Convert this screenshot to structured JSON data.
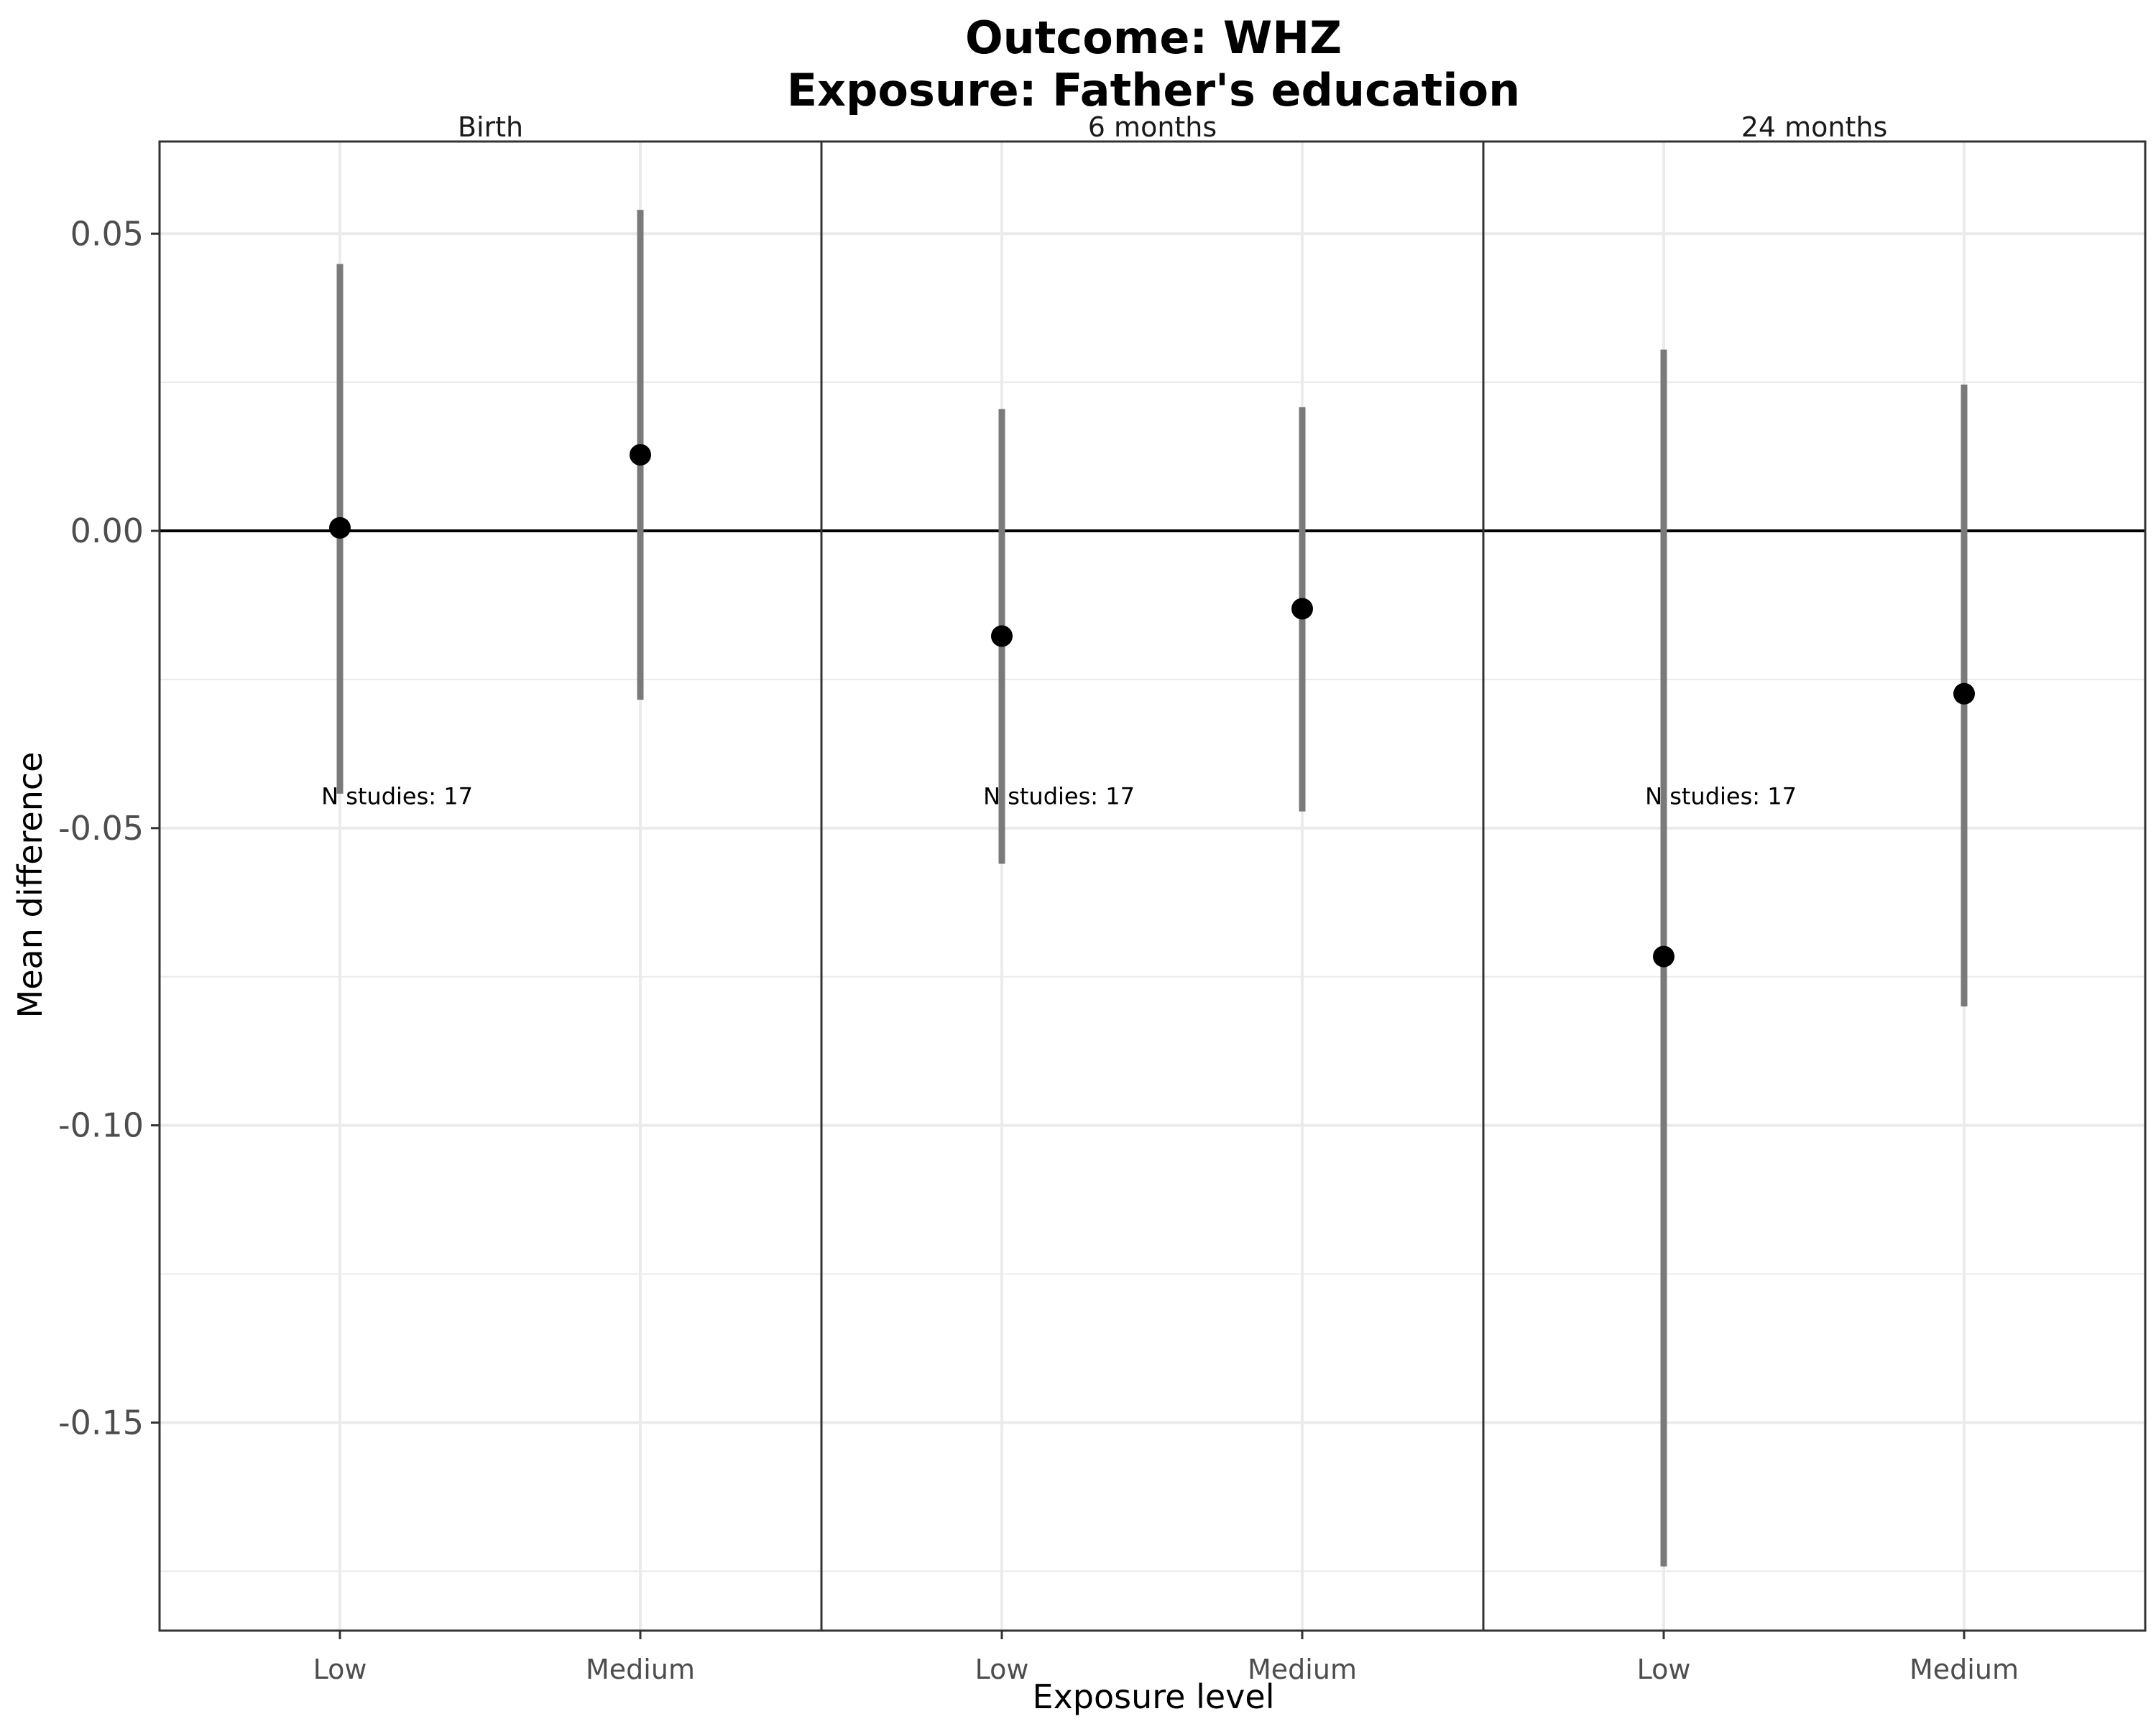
{
  "chart_data": {
    "type": "scatter",
    "title_line1": "Outcome: WHZ",
    "title_line2": "Exposure: Father's education",
    "xlabel": "Exposure level",
    "ylabel": "Mean difference",
    "ylim": [
      -0.185,
      0.0655
    ],
    "yticks": [
      0.05,
      0.0,
      -0.05,
      -0.1,
      -0.15
    ],
    "ytick_labels": [
      "0.05",
      "0.00",
      "-0.05",
      "-0.10",
      "-0.15"
    ],
    "categories": [
      "Low",
      "Medium"
    ],
    "reference_line": 0,
    "grid": true,
    "colors": {
      "point": "#000000",
      "ci_line": "#7a7a7a",
      "grid": "#ebebeb",
      "border": "#333333"
    },
    "panels": [
      {
        "label": "Birth",
        "annotation": "N studies: 17",
        "points": [
          {
            "category": "Low",
            "estimate": 0.0005,
            "ci_lower": -0.0442,
            "ci_upper": 0.0449
          },
          {
            "category": "Medium",
            "estimate": 0.0128,
            "ci_lower": -0.0284,
            "ci_upper": 0.054
          }
        ]
      },
      {
        "label": "6 months",
        "annotation": "N studies: 17",
        "points": [
          {
            "category": "Low",
            "estimate": -0.0177,
            "ci_lower": -0.056,
            "ci_upper": 0.0205
          },
          {
            "category": "Medium",
            "estimate": -0.0131,
            "ci_lower": -0.0472,
            "ci_upper": 0.0208
          }
        ]
      },
      {
        "label": "24 months",
        "annotation": "N studies: 17",
        "points": [
          {
            "category": "Low",
            "estimate": -0.0716,
            "ci_lower": -0.1742,
            "ci_upper": 0.0305
          },
          {
            "category": "Medium",
            "estimate": -0.0274,
            "ci_lower": -0.08,
            "ci_upper": 0.0246
          }
        ]
      }
    ]
  }
}
